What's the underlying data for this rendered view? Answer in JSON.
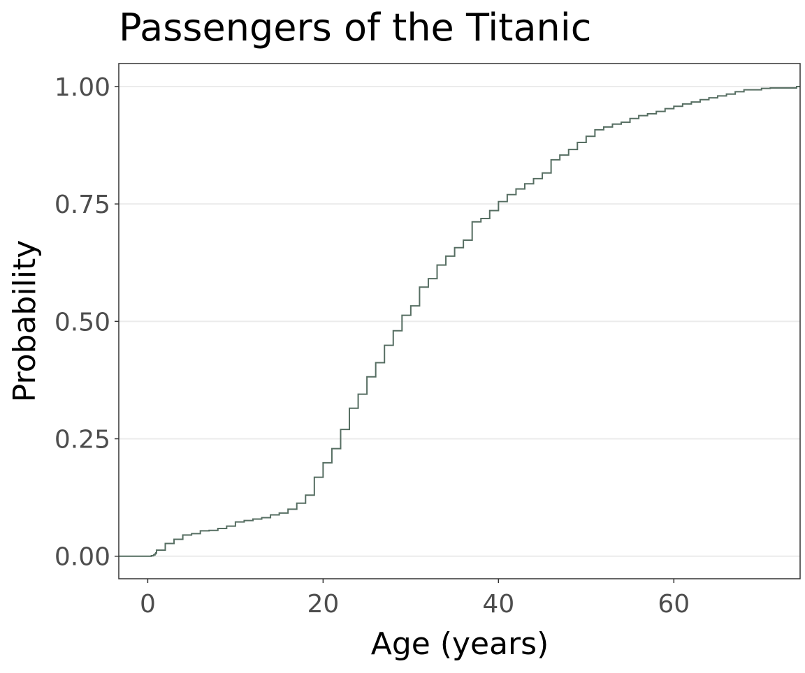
{
  "chart_data": {
    "type": "line",
    "subtype": "ecdf-step",
    "title": "Passengers of the Titanic",
    "xlabel": "Age (years)",
    "ylabel": "Probability",
    "xlim": [
      -3.3,
      74.4
    ],
    "ylim": [
      -0.048,
      1.049
    ],
    "xticks": [
      0,
      20,
      40,
      60
    ],
    "xtick_labels": [
      "0",
      "20",
      "40",
      "60"
    ],
    "yticks": [
      0,
      0.25,
      0.5,
      0.75,
      1.0
    ],
    "ytick_labels": [
      "0.00",
      "0.25",
      "0.50",
      "0.75",
      "1.00"
    ],
    "grid": "horizontal major",
    "line_color": "#566e62",
    "series": [
      {
        "name": "age",
        "x": [
          0.42,
          0.67,
          0.83,
          0.92,
          1,
          2,
          3,
          4,
          5,
          6,
          7,
          8,
          9,
          10,
          11,
          12,
          13,
          14,
          15,
          16,
          17,
          18,
          19,
          20,
          21,
          22,
          23,
          24,
          25,
          26,
          27,
          28,
          29,
          30,
          31,
          32,
          33,
          34,
          35,
          36,
          37,
          38,
          39,
          40,
          41,
          42,
          43,
          44,
          45,
          46,
          47,
          48,
          49,
          50,
          51,
          52,
          53,
          54,
          55,
          56,
          57,
          58,
          59,
          60,
          61,
          62,
          63,
          64,
          65,
          66,
          67,
          68,
          70,
          71,
          74
        ],
        "y": [
          0.001,
          0.003,
          0.005,
          0.007,
          0.013,
          0.027,
          0.036,
          0.045,
          0.048,
          0.054,
          0.055,
          0.059,
          0.064,
          0.073,
          0.076,
          0.079,
          0.082,
          0.088,
          0.092,
          0.1,
          0.113,
          0.13,
          0.168,
          0.199,
          0.229,
          0.27,
          0.315,
          0.345,
          0.382,
          0.412,
          0.449,
          0.48,
          0.513,
          0.533,
          0.573,
          0.591,
          0.62,
          0.639,
          0.657,
          0.673,
          0.712,
          0.719,
          0.736,
          0.755,
          0.77,
          0.782,
          0.793,
          0.804,
          0.816,
          0.844,
          0.854,
          0.866,
          0.881,
          0.894,
          0.908,
          0.914,
          0.92,
          0.924,
          0.932,
          0.938,
          0.942,
          0.947,
          0.953,
          0.958,
          0.963,
          0.967,
          0.972,
          0.976,
          0.98,
          0.984,
          0.989,
          0.993,
          0.996,
          0.997,
          1.0
        ]
      }
    ]
  }
}
